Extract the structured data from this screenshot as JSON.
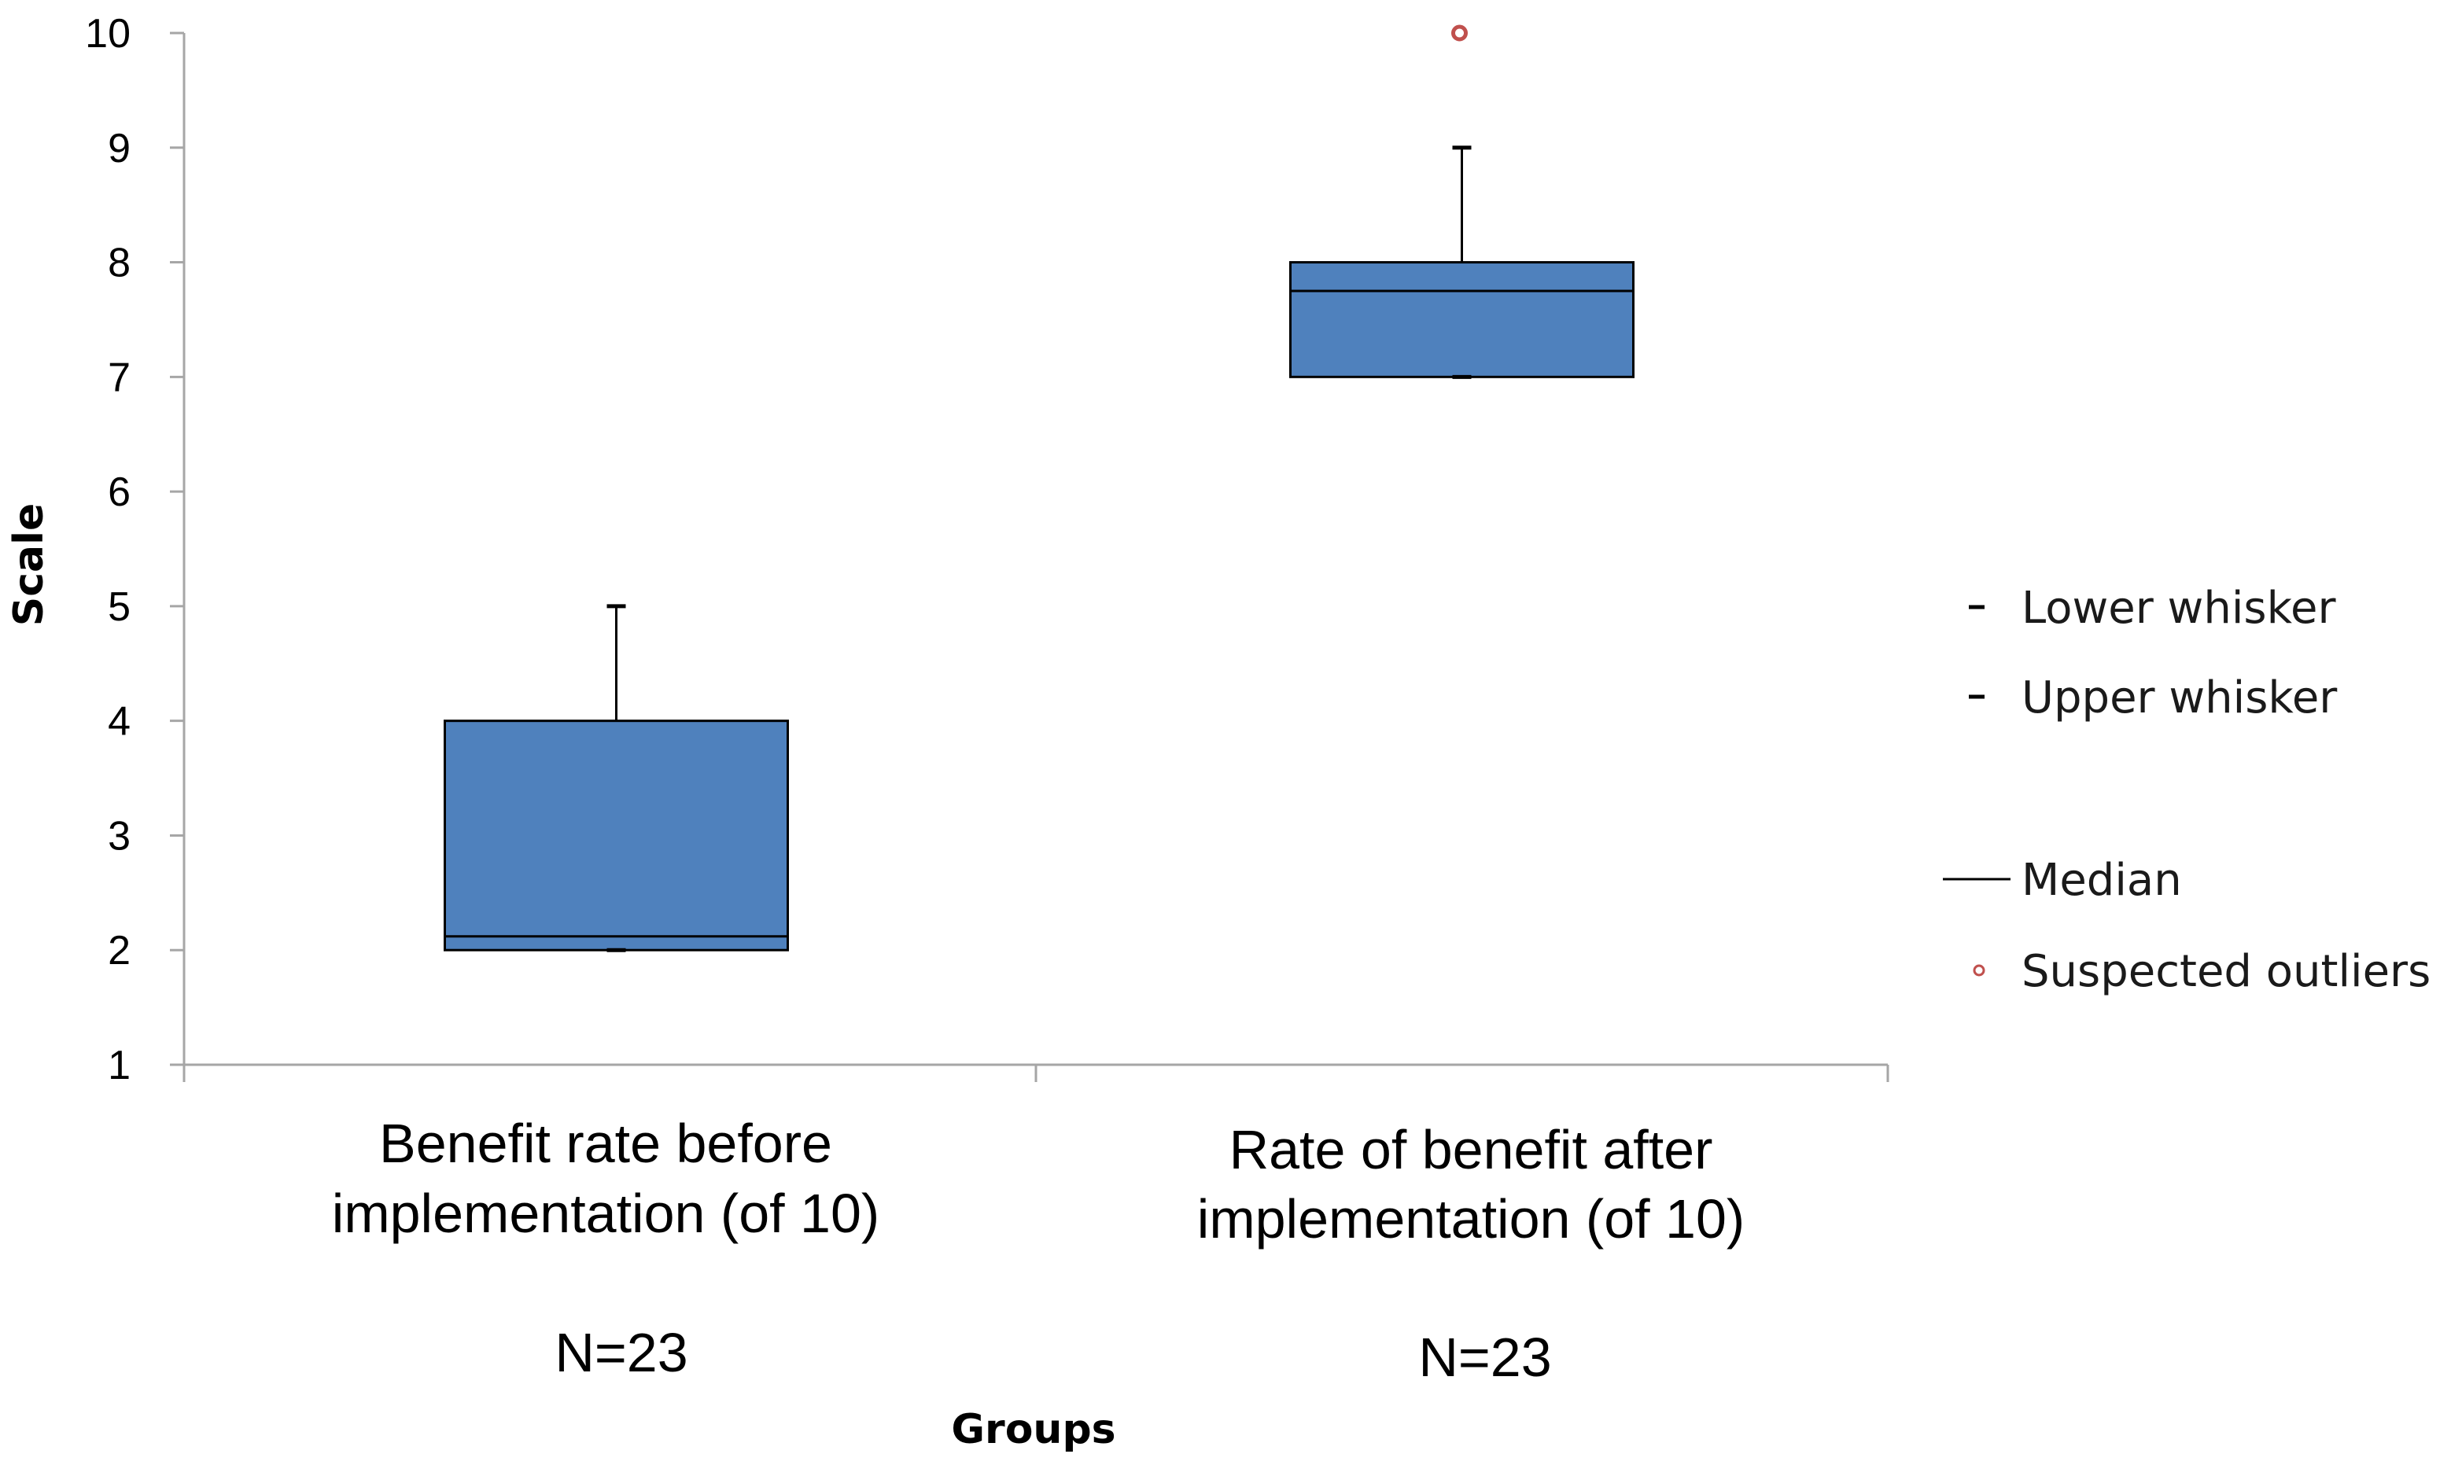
{
  "chart_data": {
    "type": "boxplot",
    "ylabel": "Scale",
    "xlabel": "Groups",
    "ylim": [
      1,
      10
    ],
    "yticks": [
      "1",
      "2",
      "3",
      "4",
      "5",
      "6",
      "7",
      "8",
      "9",
      "10"
    ],
    "categories": [
      {
        "label_line1": "Benefit rate before",
        "label_line2": "implementation (of 10)",
        "n_label": "N=23",
        "whisker_low": 2,
        "q1": 2,
        "median": 2.12,
        "q3": 4,
        "whisker_high": 5,
        "outliers": []
      },
      {
        "label_line1": "Rate of benefit after",
        "label_line2": "implementation (of 10)",
        "n_label": "N=23",
        "whisker_low": 7,
        "q1": 7,
        "median": 7.75,
        "q3": 8,
        "whisker_high": 9,
        "outliers": [
          10
        ]
      }
    ],
    "legend": {
      "placement": "right",
      "items": [
        {
          "key": "lower",
          "label": "Lower whisker"
        },
        {
          "key": "upper",
          "label": "Upper whisker"
        },
        {
          "key": "median",
          "label": "Median"
        },
        {
          "key": "outlier",
          "label": "Suspected outliers"
        }
      ]
    },
    "colors": {
      "box_fill": "#4f81bd",
      "box_stroke": "#000000",
      "outlier": "#c0504d",
      "axis": "#a6a6a6",
      "whisker": "#000000"
    }
  }
}
